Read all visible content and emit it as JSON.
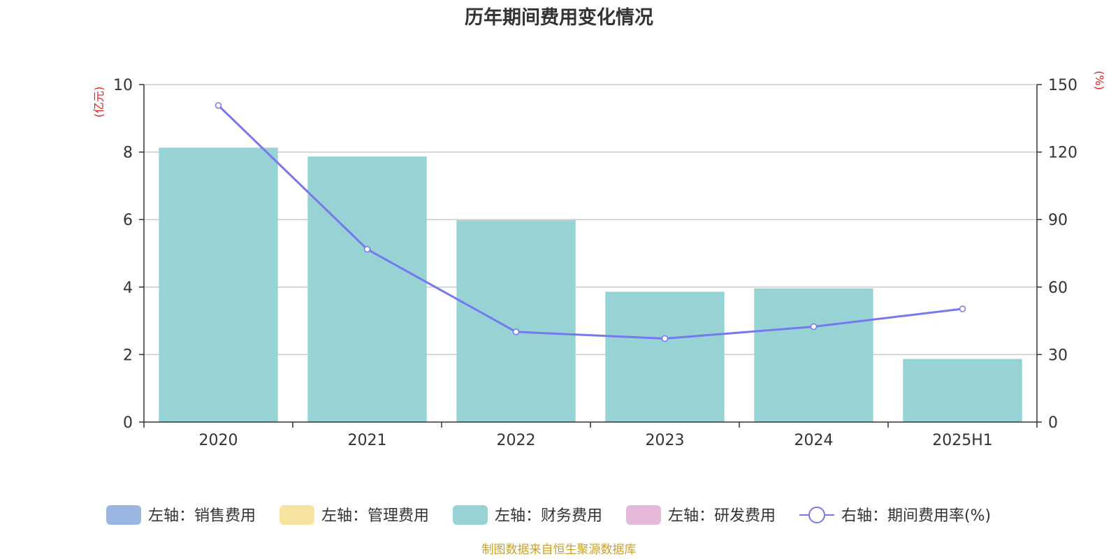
{
  "chart_data": {
    "type": "bar",
    "title": "历年期间费用变化情况",
    "categories": [
      "2020",
      "2021",
      "2022",
      "2023",
      "2024",
      "2025H1"
    ],
    "series": [
      {
        "name": "左轴：销售费用",
        "kind": "bar",
        "axis": "left",
        "color": "#9bb6e0",
        "values": [
          0,
          0,
          0,
          0,
          0,
          0
        ]
      },
      {
        "name": "左轴：管理费用",
        "kind": "bar",
        "axis": "left",
        "color": "#f6e3a0",
        "values": [
          0,
          0,
          0,
          0,
          0,
          0
        ]
      },
      {
        "name": "左轴：财务费用",
        "kind": "bar",
        "axis": "left",
        "color": "#97d3d5",
        "values": [
          8.13,
          7.87,
          5.98,
          3.86,
          3.96,
          1.87
        ]
      },
      {
        "name": "左轴：研发费用",
        "kind": "bar",
        "axis": "left",
        "color": "#e6b8db",
        "values": [
          0,
          0,
          0,
          0,
          0,
          0
        ]
      },
      {
        "name": "右轴：期间费用率(%)",
        "kind": "line",
        "axis": "right",
        "color": "#7777f0",
        "values": [
          140.7,
          76.8,
          40.1,
          37.1,
          42.4,
          50.3
        ]
      }
    ],
    "left_axis": {
      "unit": "(亿元)",
      "ylim": [
        0,
        10
      ],
      "ticks": [
        0,
        2,
        4,
        6,
        8,
        10
      ]
    },
    "right_axis": {
      "unit": "(%)",
      "ylim": [
        0,
        150
      ],
      "ticks": [
        0,
        30,
        60,
        90,
        120,
        150
      ]
    },
    "grid": true,
    "legend_position": "bottom"
  },
  "colors": {
    "unit_label": "#e02020",
    "source": "#c9a227",
    "axis": "#333333",
    "grid": "#cccccc"
  },
  "source": "制图数据来自恒生聚源数据库"
}
